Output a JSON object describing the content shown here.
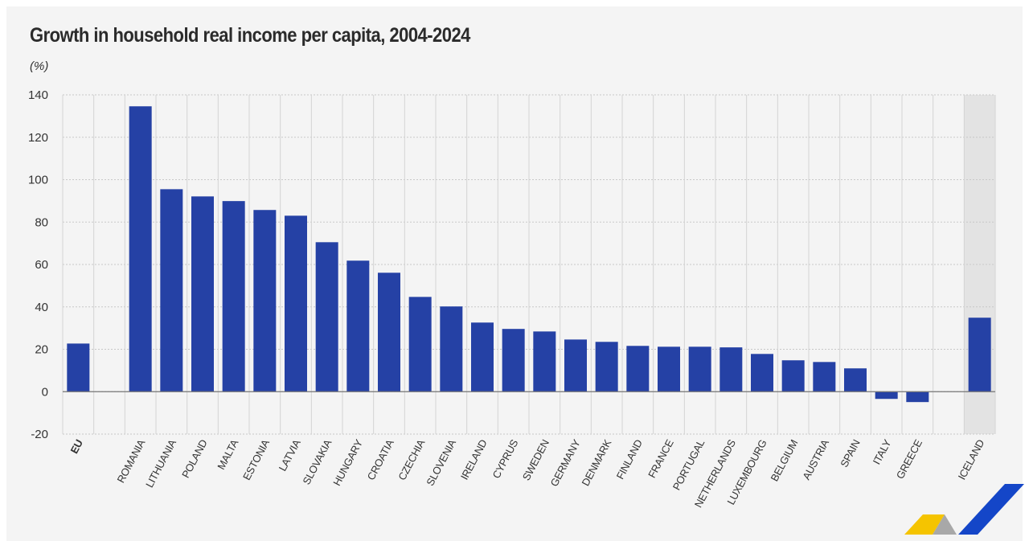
{
  "chart_data": {
    "type": "bar",
    "title": "Growth in household real income per capita, 2004-2024",
    "ylabel": "(%)",
    "xlabel": "",
    "ylim": [
      -20,
      140
    ],
    "yticks": [
      -20,
      0,
      20,
      40,
      60,
      80,
      100,
      120,
      140
    ],
    "grid": true,
    "categories": [
      "EU",
      "",
      "ROMANIA",
      "LITHUANIA",
      "POLAND",
      "MALTA",
      "ESTONIA",
      "LATVIA",
      "SLOVAKIA",
      "HUNGARY",
      "CROATIA",
      "CZECHIA",
      "SLOVENIA",
      "IRELAND",
      "CYPRUS",
      "SWEDEN",
      "GERMANY",
      "DENMARK",
      "FINLAND",
      "FRANCE",
      "PORTUGAL",
      "NETHERLANDS",
      "LUXEMBOURG",
      "BELGIUM",
      "AUSTRIA",
      "SPAIN",
      "ITALY",
      "GREECE",
      "",
      "ICELAND"
    ],
    "values": [
      22.7,
      null,
      134.6,
      95.5,
      92.1,
      89.9,
      85.7,
      83.0,
      70.5,
      61.8,
      56.1,
      44.7,
      40.2,
      32.6,
      29.6,
      28.4,
      24.6,
      23.5,
      21.6,
      21.2,
      21.2,
      20.9,
      17.8,
      14.8,
      14.0,
      11.0,
      -3.4,
      -4.9,
      null,
      34.9
    ],
    "highlighted_category": "ICELAND",
    "bar_color": "#2541a5",
    "highlight_background": "#e3e3e3"
  }
}
